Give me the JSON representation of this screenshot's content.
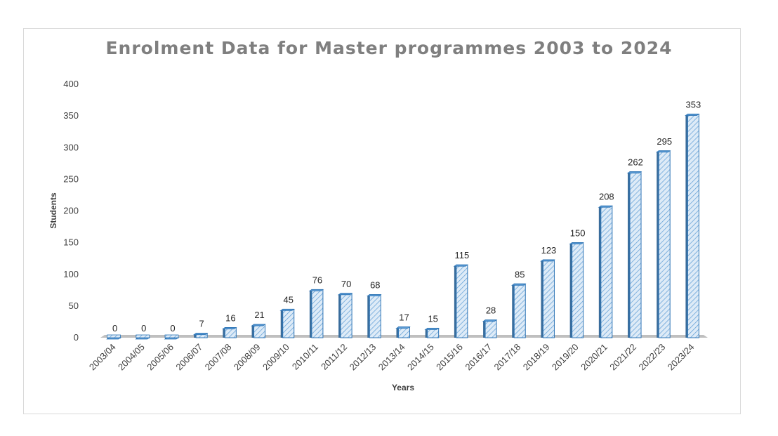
{
  "chart_data": {
    "type": "bar",
    "title": "Enrolment Data for Master programmes 2003 to 2024",
    "xlabel": "Years",
    "ylabel": "Students",
    "ylim": [
      0,
      400
    ],
    "yticks": [
      "0",
      "50",
      "100",
      "150",
      "200",
      "250",
      "300",
      "350",
      "400"
    ],
    "categories": [
      "2003/04",
      "2004/05",
      "2005/06",
      "2006/07",
      "2007/08",
      "2008/09",
      "2009/10",
      "2010/11",
      "2011/12",
      "2012/13",
      "2013/14",
      "2014/15",
      "2015/16",
      "2016/17",
      "2017/18",
      "2018/19",
      "2019/20",
      "2020/21",
      "2021/22",
      "2022/23",
      "2023/24"
    ],
    "values": [
      0,
      0,
      0,
      7,
      16,
      21,
      45,
      76,
      70,
      68,
      17,
      15,
      115,
      28,
      85,
      123,
      150,
      208,
      262,
      295,
      353
    ],
    "data_labels": [
      "0",
      "0",
      "0",
      "7",
      "16",
      "21",
      "45",
      "76",
      "70",
      "68",
      "17",
      "15",
      "115",
      "28",
      "85",
      "123",
      "150",
      "208",
      "262",
      "295",
      "353"
    ],
    "grid": false,
    "legend": "none",
    "style": "3d-column",
    "colors": {
      "bar_fill": "#deebf7",
      "bar_hatch": "#5b9bd5",
      "bar_edge": "#2e75b6",
      "floor": "#bfbfbf",
      "title": "#7f7f7f"
    }
  }
}
